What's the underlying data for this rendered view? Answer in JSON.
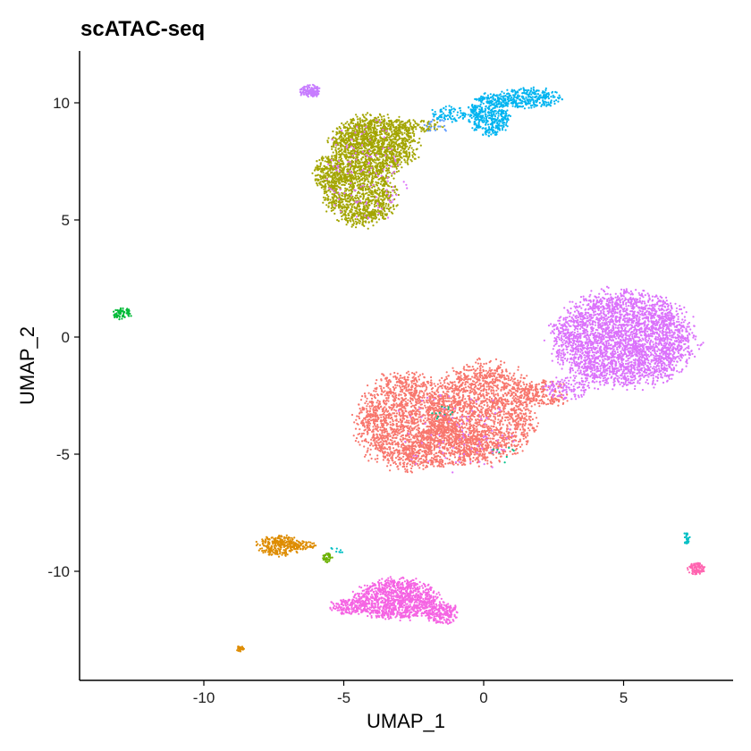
{
  "chart_data": {
    "type": "scatter",
    "title": "scATAC-seq",
    "xlabel": "UMAP_1",
    "ylabel": "UMAP_2",
    "xlim": [
      -14.5,
      9
    ],
    "ylim": [
      -14.2,
      12.2
    ],
    "xticks": [
      -10,
      -5,
      0,
      5
    ],
    "yticks": [
      10,
      5,
      0,
      -5,
      -10
    ],
    "xtick_labels": [
      "-10",
      "-5",
      "0",
      "5"
    ],
    "ytick_labels": [
      "10",
      "5",
      "0",
      "-5",
      "-10"
    ],
    "grid": false,
    "legend": "none",
    "clusters": [
      {
        "color": "#F8766D",
        "blobs": [
          {
            "cx": -2.8,
            "cy": -3.6,
            "rx": 1.8,
            "ry": 2.1,
            "n": 1700
          },
          {
            "cx": 0.0,
            "cy": -3.2,
            "rx": 1.9,
            "ry": 2.2,
            "n": 1800
          },
          {
            "cx": -1.4,
            "cy": -4.7,
            "rx": 1.6,
            "ry": 0.9,
            "n": 500
          },
          {
            "cx": 2.2,
            "cy": -2.4,
            "rx": 0.9,
            "ry": 0.6,
            "n": 180
          }
        ]
      },
      {
        "color": "#DE8C00",
        "blobs": [
          {
            "cx": -7.3,
            "cy": -8.9,
            "rx": 0.8,
            "ry": 0.45,
            "n": 300
          },
          {
            "cx": -6.4,
            "cy": -8.9,
            "rx": 0.45,
            "ry": 0.2,
            "n": 50
          },
          {
            "cx": -8.7,
            "cy": -13.3,
            "rx": 0.14,
            "ry": 0.15,
            "n": 25
          }
        ]
      },
      {
        "color": "#A3A500",
        "blobs": [
          {
            "cx": -3.9,
            "cy": 8.2,
            "rx": 1.6,
            "ry": 1.3,
            "n": 1500
          },
          {
            "cx": -4.4,
            "cy": 6.1,
            "rx": 1.3,
            "ry": 1.4,
            "n": 1000
          },
          {
            "cx": -5.5,
            "cy": 7.0,
            "rx": 0.6,
            "ry": 0.8,
            "n": 280
          },
          {
            "cx": -2.3,
            "cy": 9.0,
            "rx": 0.9,
            "ry": 0.3,
            "n": 80
          }
        ]
      },
      {
        "color": "#6BB100",
        "blobs": [
          {
            "cx": -5.6,
            "cy": -9.4,
            "rx": 0.2,
            "ry": 0.25,
            "n": 40
          }
        ]
      },
      {
        "color": "#00BA38",
        "blobs": [
          {
            "cx": -12.9,
            "cy": 1.0,
            "rx": 0.35,
            "ry": 0.25,
            "n": 70
          }
        ]
      },
      {
        "color": "#00C08B",
        "blobs": [
          {
            "cx": -1.5,
            "cy": -3.2,
            "rx": 0.5,
            "ry": 0.4,
            "n": 12
          },
          {
            "cx": 0.7,
            "cy": -5.0,
            "rx": 0.6,
            "ry": 0.4,
            "n": 10
          }
        ]
      },
      {
        "color": "#00BFC4",
        "blobs": [
          {
            "cx": 7.25,
            "cy": -8.6,
            "rx": 0.12,
            "ry": 0.25,
            "n": 25
          },
          {
            "cx": -5.3,
            "cy": -9.1,
            "rx": 0.3,
            "ry": 0.15,
            "n": 8
          }
        ]
      },
      {
        "color": "#00B4F0",
        "blobs": [
          {
            "cx": 0.2,
            "cy": 9.5,
            "rx": 0.75,
            "ry": 0.9,
            "n": 450
          },
          {
            "cx": 1.6,
            "cy": 10.2,
            "rx": 1.2,
            "ry": 0.45,
            "n": 300
          },
          {
            "cx": -1.2,
            "cy": 9.5,
            "rx": 0.7,
            "ry": 0.35,
            "n": 80
          }
        ]
      },
      {
        "color": "#619CFF",
        "blobs": [
          {
            "cx": -1.7,
            "cy": 9.0,
            "rx": 0.5,
            "ry": 0.3,
            "n": 20
          }
        ]
      },
      {
        "color": "#C77CFF",
        "blobs": [
          {
            "cx": -6.2,
            "cy": 10.5,
            "rx": 0.4,
            "ry": 0.28,
            "n": 130
          }
        ]
      },
      {
        "color": "#DB72FB",
        "blobs": [
          {
            "cx": 5.0,
            "cy": -0.1,
            "rx": 2.6,
            "ry": 2.1,
            "n": 3200
          },
          {
            "cx": 3.0,
            "cy": -2.2,
            "rx": 0.9,
            "ry": 0.5,
            "n": 120
          },
          {
            "cx": -4.2,
            "cy": 7.0,
            "rx": 1.6,
            "ry": 2.2,
            "n": 120
          },
          {
            "cx": -1.0,
            "cy": -4.0,
            "rx": 2.2,
            "ry": 1.8,
            "n": 90
          }
        ]
      },
      {
        "color": "#F564E3",
        "blobs": [
          {
            "cx": -3.1,
            "cy": -11.2,
            "rx": 1.6,
            "ry": 0.9,
            "n": 1100
          },
          {
            "cx": -1.5,
            "cy": -11.8,
            "rx": 0.6,
            "ry": 0.5,
            "n": 200
          },
          {
            "cx": -4.8,
            "cy": -11.5,
            "rx": 0.7,
            "ry": 0.35,
            "n": 150
          }
        ]
      },
      {
        "color": "#FF64B0",
        "blobs": [
          {
            "cx": 7.6,
            "cy": -9.9,
            "rx": 0.3,
            "ry": 0.25,
            "n": 110
          }
        ]
      }
    ]
  }
}
